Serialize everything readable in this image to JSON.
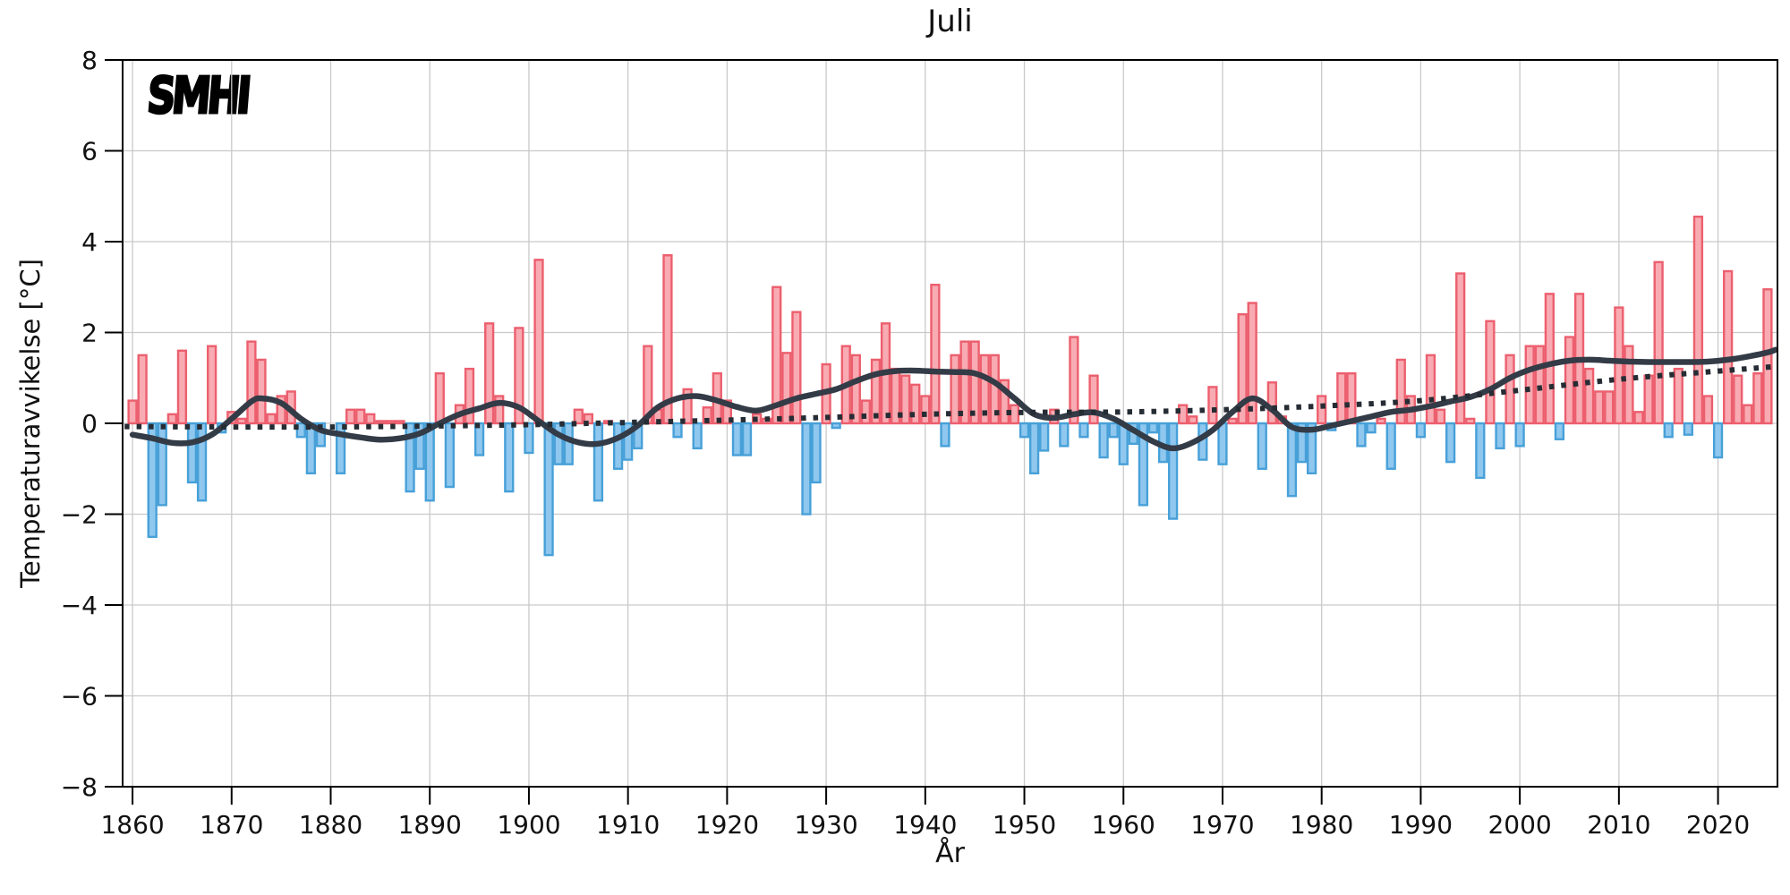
{
  "title": "Juli",
  "logo_text": "SMHI",
  "axes": {
    "xlabel": "År",
    "ylabel": "Temperaturavvikelse [°C]",
    "xlim": [
      1859,
      2026
    ],
    "ylim": [
      -8,
      8
    ],
    "x_ticks": [
      1860,
      1870,
      1880,
      1890,
      1900,
      1910,
      1920,
      1930,
      1940,
      1950,
      1960,
      1970,
      1980,
      1990,
      2000,
      2010,
      2020
    ],
    "y_ticks": [
      -8,
      -6,
      -4,
      -2,
      0,
      2,
      4,
      6,
      8
    ],
    "y_tick_labels": [
      "−8",
      "−6",
      "−4",
      "−2",
      "0",
      "2",
      "4",
      "6",
      "8"
    ],
    "grid": true
  },
  "chart_data": {
    "type": "bar",
    "title": "Juli",
    "xlabel": "År",
    "ylabel": "Temperaturavvikelse [°C]",
    "years_range": [
      1860,
      2025
    ],
    "values": [
      0.5,
      1.5,
      -2.5,
      -1.8,
      0.2,
      1.6,
      -1.3,
      -1.7,
      1.7,
      -0.2,
      0.25,
      0.1,
      1.8,
      1.4,
      0.2,
      0.6,
      0.7,
      -0.3,
      -1.1,
      -0.5,
      0.0,
      -1.1,
      0.3,
      0.3,
      0.2,
      0.05,
      0.05,
      0.05,
      -1.5,
      -1.0,
      -1.7,
      1.1,
      -1.4,
      0.4,
      1.2,
      -0.7,
      2.2,
      0.6,
      -1.5,
      2.1,
      -0.65,
      3.6,
      -2.9,
      -0.9,
      -0.9,
      0.3,
      0.2,
      -1.7,
      0.05,
      -1.0,
      -0.8,
      -0.55,
      1.7,
      0.3,
      3.7,
      -0.3,
      0.75,
      -0.55,
      0.35,
      1.1,
      0.5,
      -0.7,
      -0.7,
      0.2,
      0.1,
      3.0,
      1.55,
      2.45,
      -2.0,
      -1.3,
      1.3,
      -0.1,
      1.7,
      1.5,
      0.5,
      1.4,
      2.2,
      1.2,
      1.05,
      0.85,
      0.6,
      3.05,
      -0.5,
      1.5,
      1.8,
      1.8,
      1.5,
      1.5,
      0.95,
      0.4,
      -0.3,
      -1.1,
      -0.6,
      0.3,
      -0.5,
      1.9,
      -0.3,
      1.05,
      -0.75,
      -0.3,
      -0.9,
      -0.45,
      -1.8,
      -0.2,
      -0.85,
      -2.1,
      0.4,
      0.15,
      -0.8,
      0.8,
      -0.9,
      0.1,
      2.4,
      2.65,
      -1.0,
      0.9,
      0.15,
      -1.6,
      -0.85,
      -1.1,
      0.6,
      -0.15,
      1.1,
      1.1,
      -0.5,
      -0.2,
      0.1,
      -1.0,
      1.4,
      0.6,
      -0.3,
      1.5,
      0.3,
      -0.85,
      3.3,
      0.1,
      -1.2,
      2.25,
      -0.55,
      1.5,
      -0.5,
      1.7,
      1.7,
      2.85,
      -0.35,
      1.9,
      2.85,
      1.2,
      0.7,
      0.7,
      2.55,
      1.7,
      0.25,
      1.05,
      3.55,
      -0.3,
      1.2,
      -0.25,
      4.55,
      0.6,
      -0.75,
      3.35,
      1.05,
      0.4,
      1.1,
      2.95
    ],
    "series": [
      {
        "name": "smoothed-anomaly-line",
        "style": "solid",
        "points": [
          [
            1860,
            -0.25
          ],
          [
            1862,
            -0.33
          ],
          [
            1864,
            -0.43
          ],
          [
            1866,
            -0.42
          ],
          [
            1868,
            -0.25
          ],
          [
            1870,
            0.1
          ],
          [
            1872,
            0.48
          ],
          [
            1873,
            0.55
          ],
          [
            1875,
            0.45
          ],
          [
            1877,
            0.1
          ],
          [
            1879,
            -0.15
          ],
          [
            1881,
            -0.24
          ],
          [
            1883,
            -0.31
          ],
          [
            1885,
            -0.36
          ],
          [
            1887,
            -0.33
          ],
          [
            1889,
            -0.22
          ],
          [
            1891,
            0.0
          ],
          [
            1893,
            0.2
          ],
          [
            1895,
            0.33
          ],
          [
            1897,
            0.45
          ],
          [
            1899,
            0.35
          ],
          [
            1901,
            0.05
          ],
          [
            1903,
            -0.25
          ],
          [
            1905,
            -0.42
          ],
          [
            1907,
            -0.45
          ],
          [
            1909,
            -0.32
          ],
          [
            1911,
            -0.05
          ],
          [
            1913,
            0.35
          ],
          [
            1915,
            0.55
          ],
          [
            1917,
            0.6
          ],
          [
            1919,
            0.5
          ],
          [
            1921,
            0.36
          ],
          [
            1923,
            0.28
          ],
          [
            1925,
            0.4
          ],
          [
            1927,
            0.55
          ],
          [
            1929,
            0.65
          ],
          [
            1931,
            0.75
          ],
          [
            1933,
            0.93
          ],
          [
            1935,
            1.08
          ],
          [
            1937,
            1.15
          ],
          [
            1939,
            1.16
          ],
          [
            1941,
            1.14
          ],
          [
            1943,
            1.13
          ],
          [
            1945,
            1.1
          ],
          [
            1947,
            0.9
          ],
          [
            1949,
            0.55
          ],
          [
            1951,
            0.2
          ],
          [
            1953,
            0.12
          ],
          [
            1955,
            0.2
          ],
          [
            1957,
            0.24
          ],
          [
            1959,
            0.1
          ],
          [
            1961,
            -0.15
          ],
          [
            1963,
            -0.4
          ],
          [
            1965,
            -0.55
          ],
          [
            1967,
            -0.42
          ],
          [
            1969,
            -0.15
          ],
          [
            1971,
            0.25
          ],
          [
            1973,
            0.55
          ],
          [
            1975,
            0.3
          ],
          [
            1977,
            -0.08
          ],
          [
            1979,
            -0.14
          ],
          [
            1981,
            -0.05
          ],
          [
            1983,
            0.05
          ],
          [
            1985,
            0.15
          ],
          [
            1987,
            0.25
          ],
          [
            1989,
            0.3
          ],
          [
            1991,
            0.38
          ],
          [
            1993,
            0.48
          ],
          [
            1995,
            0.58
          ],
          [
            1997,
            0.75
          ],
          [
            1999,
            1.0
          ],
          [
            2001,
            1.18
          ],
          [
            2003,
            1.3
          ],
          [
            2005,
            1.38
          ],
          [
            2007,
            1.4
          ],
          [
            2009,
            1.38
          ],
          [
            2011,
            1.36
          ],
          [
            2013,
            1.35
          ],
          [
            2015,
            1.35
          ],
          [
            2017,
            1.35
          ],
          [
            2019,
            1.36
          ],
          [
            2021,
            1.4
          ],
          [
            2023,
            1.47
          ],
          [
            2025,
            1.56
          ],
          [
            2025.8,
            1.62
          ]
        ]
      },
      {
        "name": "trend-dotted-line",
        "style": "dotted",
        "points": [
          [
            1859.2,
            -0.07
          ],
          [
            1870,
            -0.08
          ],
          [
            1880,
            -0.08
          ],
          [
            1890,
            -0.06
          ],
          [
            1900,
            -0.03
          ],
          [
            1910,
            0.02
          ],
          [
            1920,
            0.07
          ],
          [
            1930,
            0.13
          ],
          [
            1940,
            0.2
          ],
          [
            1950,
            0.24
          ],
          [
            1960,
            0.25
          ],
          [
            1970,
            0.3
          ],
          [
            1980,
            0.38
          ],
          [
            1990,
            0.5
          ],
          [
            2000,
            0.73
          ],
          [
            2010,
            0.97
          ],
          [
            2020,
            1.15
          ],
          [
            2025.8,
            1.25
          ]
        ]
      }
    ],
    "colors": {
      "bar_positive_fill": "#f8abb2",
      "bar_positive_stroke": "#ec5f6e",
      "bar_negative_fill": "#8fc7ee",
      "bar_negative_stroke": "#47a0d8",
      "smoothed_line": "#333b47",
      "trend_line": "#262c34",
      "grid": "#c9c9c9",
      "spine": "#000000"
    }
  }
}
